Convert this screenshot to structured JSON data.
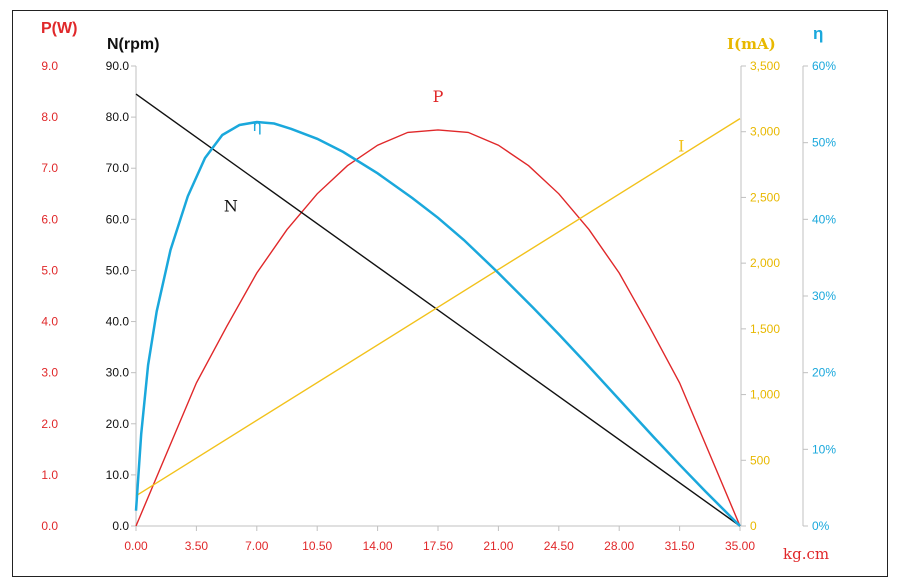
{
  "chart_data": {
    "type": "line",
    "x": [
      0,
      3.5,
      7,
      10.5,
      14,
      17.5,
      21,
      24.5,
      28,
      31.5,
      35
    ],
    "xlabel": "kg.cm",
    "x_ticks": [
      "0.00",
      "3.50",
      "7.00",
      "10.50",
      "14.00",
      "17.50",
      "21.00",
      "24.50",
      "28.00",
      "31.50",
      "35.00"
    ],
    "axes": {
      "P": {
        "title": "P(W)",
        "range": [
          0,
          9
        ],
        "ticks": [
          "0.0",
          "1.0",
          "2.0",
          "3.0",
          "4.0",
          "5.0",
          "6.0",
          "7.0",
          "8.0",
          "9.0"
        ],
        "color": "#e0282a"
      },
      "N": {
        "title": "N(rpm)",
        "range": [
          0,
          90
        ],
        "ticks": [
          "0.0",
          "10.0",
          "20.0",
          "30.0",
          "40.0",
          "50.0",
          "60.0",
          "70.0",
          "80.0",
          "90.0"
        ],
        "color": "#111111"
      },
      "I": {
        "title": "I(mA)",
        "range": [
          0,
          3500
        ],
        "ticks": [
          "0",
          "500",
          "1,000",
          "1,500",
          "2,000",
          "2,500",
          "3,000",
          "3,500"
        ],
        "color": "#f2c21b"
      },
      "eta": {
        "title": "η",
        "range": [
          0,
          60
        ],
        "ticks": [
          "0%",
          "10%",
          "20%",
          "30%",
          "40%",
          "50%",
          "60%"
        ],
        "color": "#1aa8dc"
      }
    },
    "series": [
      {
        "name": "P",
        "axis": "P",
        "color": "#e0282a",
        "label_pos": [
          17.5,
          8.3
        ],
        "points": [
          [
            0,
            0
          ],
          [
            1.75,
            1.4
          ],
          [
            3.5,
            2.8
          ],
          [
            5.25,
            3.9
          ],
          [
            7,
            4.95
          ],
          [
            8.75,
            5.8
          ],
          [
            10.5,
            6.5
          ],
          [
            12.25,
            7.05
          ],
          [
            14,
            7.45
          ],
          [
            15.75,
            7.7
          ],
          [
            17.5,
            7.75
          ],
          [
            19.25,
            7.7
          ],
          [
            21,
            7.45
          ],
          [
            22.75,
            7.05
          ],
          [
            24.5,
            6.5
          ],
          [
            26.25,
            5.8
          ],
          [
            28,
            4.95
          ],
          [
            29.75,
            3.9
          ],
          [
            31.5,
            2.8
          ],
          [
            33.25,
            1.4
          ],
          [
            35,
            0
          ]
        ]
      },
      {
        "name": "N",
        "axis": "N",
        "color": "#111111",
        "label_pos": [
          5.5,
          61.5
        ],
        "points": [
          [
            0,
            84.5
          ],
          [
            35,
            0
          ]
        ]
      },
      {
        "name": "I",
        "axis": "I",
        "color": "#f2c21b",
        "label_pos": [
          31.6,
          2850
        ],
        "points": [
          [
            0,
            230
          ],
          [
            35,
            3100
          ]
        ]
      },
      {
        "name": "η",
        "axis": "eta",
        "color": "#1aa8dc",
        "label_pos": [
          7,
          51.5
        ],
        "points": [
          [
            0,
            2
          ],
          [
            0.3,
            12
          ],
          [
            0.7,
            21
          ],
          [
            1.2,
            28
          ],
          [
            2,
            36
          ],
          [
            3,
            43
          ],
          [
            4,
            48
          ],
          [
            5,
            51
          ],
          [
            6,
            52.3
          ],
          [
            7,
            52.7
          ],
          [
            8,
            52.5
          ],
          [
            9,
            51.8
          ],
          [
            10.5,
            50.5
          ],
          [
            12,
            48.8
          ],
          [
            14,
            46
          ],
          [
            16,
            42.8
          ],
          [
            17.5,
            40.2
          ],
          [
            19,
            37.3
          ],
          [
            21,
            33
          ],
          [
            23,
            28.5
          ],
          [
            24.5,
            25
          ],
          [
            26,
            21.4
          ],
          [
            28,
            16.5
          ],
          [
            30,
            11.6
          ],
          [
            31.5,
            8
          ],
          [
            33,
            4.5
          ],
          [
            35,
            0
          ]
        ]
      }
    ],
    "grid": false,
    "legend": "none"
  }
}
